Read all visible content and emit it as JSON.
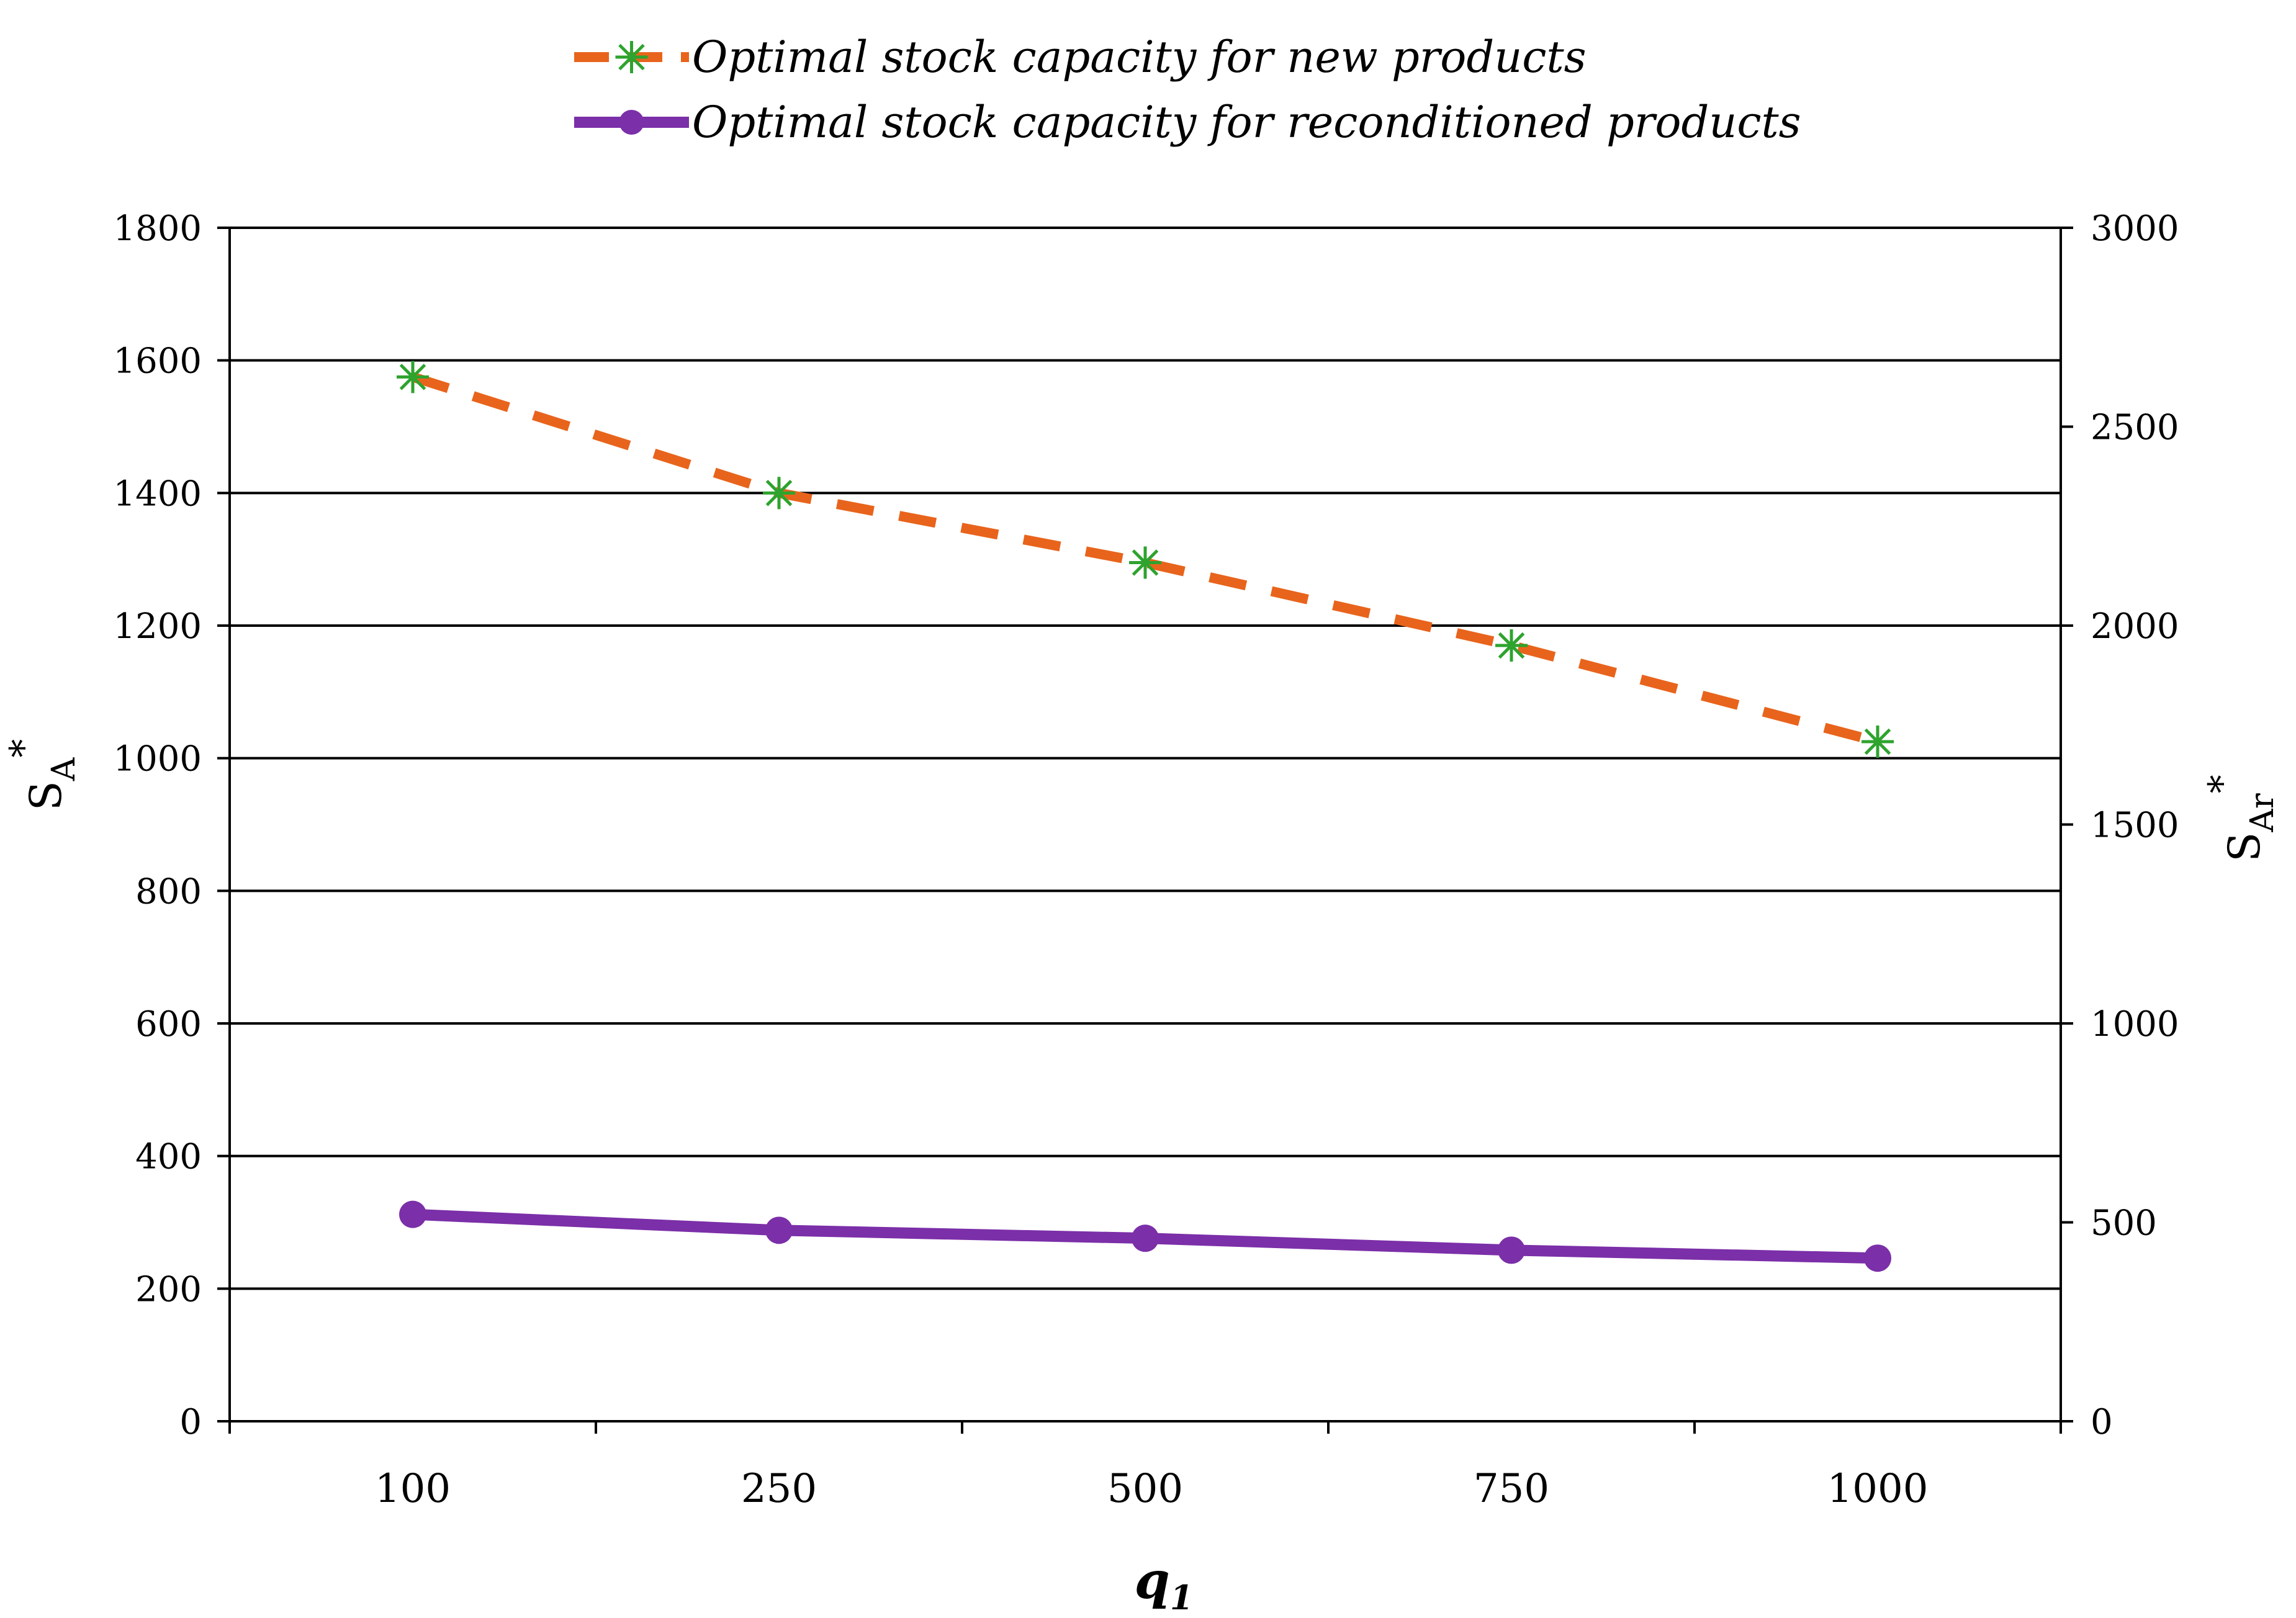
{
  "chart_data": {
    "type": "line",
    "title": "",
    "categories": [
      "100",
      "250",
      "500",
      "750",
      "1000"
    ],
    "xlabel": {
      "main": "q",
      "sub": "1"
    },
    "ylabel_left": {
      "main": "S",
      "sub": "A",
      "sup": "*"
    },
    "ylabel_right": {
      "main": "S",
      "sub": "Ar",
      "sup": "*"
    },
    "y_left": {
      "min": 0,
      "max": 1800,
      "step": 200,
      "ticks": [
        "0",
        "200",
        "400",
        "600",
        "800",
        "1000",
        "1200",
        "1400",
        "1600",
        "1800"
      ]
    },
    "y_right": {
      "min": 0,
      "max": 3000,
      "step": 500,
      "ticks": [
        "0",
        "500",
        "1000",
        "1500",
        "2000",
        "2500",
        "3000"
      ]
    },
    "grid": "horizontal",
    "legend_position": "top-center",
    "series": [
      {
        "name": "Optimal stock capacity for new products",
        "axis": "left",
        "values": [
          1575,
          1400,
          1295,
          1170,
          1025
        ],
        "line_color": "#e8641c",
        "line_style": "dashed",
        "marker": "asterisk",
        "marker_color": "#2ea32e"
      },
      {
        "name": "Optimal stock capacity for reconditioned products",
        "axis": "right",
        "values": [
          520,
          480,
          460,
          430,
          410
        ],
        "line_color": "#7b2fa8",
        "line_style": "solid",
        "marker": "circle",
        "marker_color": "#7b2fa8"
      }
    ]
  }
}
